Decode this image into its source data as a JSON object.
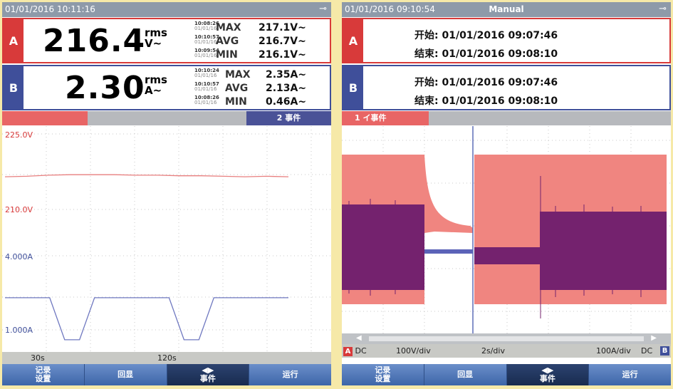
{
  "left": {
    "datetime": "01/01/2016 10:11:16",
    "channel_a": {
      "label": "A",
      "value": "216.4",
      "unit_top": "rms",
      "unit_bottom": "V~",
      "stats": [
        {
          "time": "10:08:26",
          "date": "01/01/16",
          "label": "MAX",
          "value": "217.1V~"
        },
        {
          "time": "10:10:57",
          "date": "01/01/16",
          "label": "AVG",
          "value": "216.7V~"
        },
        {
          "time": "10:09:54",
          "date": "01/01/16",
          "label": "MIN",
          "value": "216.1V~"
        }
      ]
    },
    "channel_b": {
      "label": "B",
      "value": "2.30",
      "unit_top": "rms",
      "unit_bottom": "A~",
      "stats": [
        {
          "time": "10:10:24",
          "date": "01/01/16",
          "label": "MAX",
          "value": "2.35A~"
        },
        {
          "time": "10:10:57",
          "date": "01/01/16",
          "label": "AVG",
          "value": "2.13A~"
        },
        {
          "time": "10:08:26",
          "date": "01/01/16",
          "label": "MIN",
          "value": "0.46A~"
        }
      ]
    },
    "events_label": "2 事件",
    "y_labels": {
      "v_top": "225.0V",
      "v_bottom": "210.0V",
      "a_top": "4.000A",
      "a_bottom": "1.000A"
    },
    "time_labels": [
      "30s",
      "120s"
    ],
    "softkeys": [
      "记录\n设置",
      "回显",
      "◀▶\n事件",
      "运行"
    ],
    "chart_data": {
      "type": "line",
      "series": [
        {
          "values": [
            216.5,
            216.6,
            216.8,
            216.9,
            216.9,
            216.9,
            216.8,
            216.8,
            216.7,
            216.7,
            216.6,
            216.5,
            216.6,
            216.5
          ]
        },
        {
          "values": [
            2.3,
            2.3,
            2.3,
            2.3,
            0.6,
            0.6,
            2.3,
            2.3,
            2.3,
            2.3,
            2.3,
            2.3,
            0.6,
            0.6,
            2.3,
            2.3,
            2.3,
            2.3,
            2.3,
            2.3
          ]
        }
      ]
    }
  },
  "right": {
    "datetime": "01/01/2016 09:10:54",
    "mode": "Manual",
    "channel_a": {
      "label": "A",
      "start": "开始: 01/01/2016 09:07:46",
      "end": "结束: 01/01/2016 09:08:10"
    },
    "channel_b": {
      "label": "B",
      "start": "开始: 01/01/2016 09:07:46",
      "end": "结束: 01/01/2016 09:08:10"
    },
    "event_label": "1 イ事件",
    "scale": {
      "a_tag": "A",
      "a_coupling": "DC",
      "a_scale": "100V/div",
      "time": "2s/div",
      "b_scale": "100A/div",
      "b_coupling": "DC",
      "b_tag": "B"
    },
    "softkeys": [
      "记录\n设置",
      "回显",
      "◀▶\n事件",
      "运行"
    ],
    "colors": {
      "voltage": "#f08580",
      "current": "#74226e"
    }
  }
}
